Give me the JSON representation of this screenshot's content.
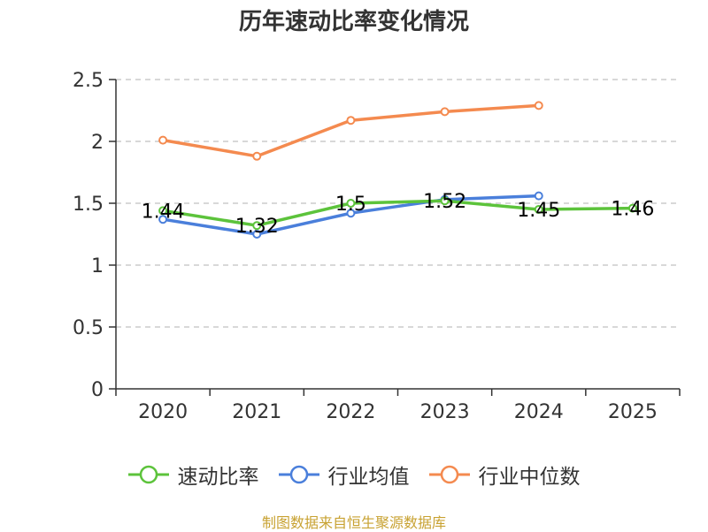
{
  "chart_data": {
    "type": "line",
    "title": "历年速动比率变化情况",
    "categories": [
      "2020",
      "2021",
      "2022",
      "2023",
      "2024",
      "2025"
    ],
    "ylim": [
      0,
      2.5
    ],
    "yticks": [
      0,
      0.5,
      1,
      1.5,
      2,
      2.5
    ],
    "ytick_labels": [
      "0",
      "0.5",
      "1",
      "1.5",
      "2",
      "2.5"
    ],
    "grid": "horizontal-dashed",
    "legend_position": "bottom",
    "series": [
      {
        "name": "速动比率",
        "color": "#5cc33b",
        "values": [
          1.44,
          1.32,
          1.5,
          1.52,
          1.45,
          1.46
        ],
        "labels": [
          "1.44",
          "1.32",
          "1.5",
          "1.52",
          "1.45",
          "1.46"
        ]
      },
      {
        "name": "行业均值",
        "color": "#4a7fdb",
        "values": [
          1.37,
          1.25,
          1.42,
          1.53,
          1.56,
          null
        ]
      },
      {
        "name": "行业中位数",
        "color": "#f48a4f",
        "values": [
          2.01,
          1.88,
          2.17,
          2.24,
          2.29,
          null
        ]
      }
    ]
  },
  "source_note": "制图数据来自恒生聚源数据库"
}
